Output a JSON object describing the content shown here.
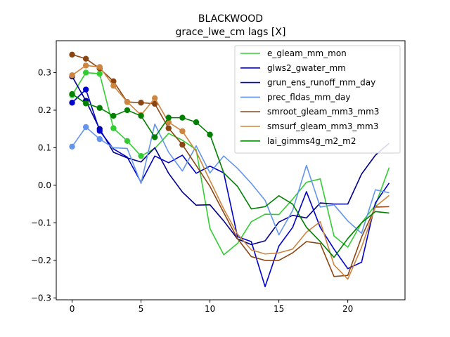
{
  "chart_data": {
    "type": "line",
    "title": "BLACKWOOD",
    "subtitle": "grace_lwe_cm lags [X]",
    "xlabel": "",
    "ylabel": "",
    "xlim": [
      -1.15,
      24.15
    ],
    "ylim": [
      -0.305,
      0.385
    ],
    "xticks": [
      0,
      5,
      10,
      15,
      20
    ],
    "yticks": [
      -0.3,
      -0.2,
      -0.1,
      0.0,
      0.1,
      0.2,
      0.3
    ],
    "ytick_labels": [
      "−0.3",
      "−0.2",
      "−0.1",
      "0.0",
      "0.1",
      "0.2",
      "0.3"
    ],
    "grid": false,
    "legend_position": "top-right",
    "x": [
      0,
      1,
      2,
      3,
      4,
      5,
      6,
      7,
      8,
      9,
      10,
      11,
      12,
      13,
      14,
      15,
      16,
      17,
      18,
      19,
      20,
      21,
      22,
      23
    ],
    "series": [
      {
        "name": "e_gleam_mm_mon",
        "color": "#32cd32",
        "values": [
          0.24,
          0.3,
          0.297,
          0.152,
          0.118,
          0.078,
          0.098,
          0.138,
          0.12,
          0.095,
          -0.115,
          -0.185,
          -0.155,
          -0.097,
          -0.077,
          -0.078,
          -0.037,
          0.008,
          0.017,
          -0.135,
          -0.165,
          -0.1,
          -0.053,
          0.047
        ],
        "markers_upto": 5
      },
      {
        "name": "glws2_gwater_mm",
        "color": "#00008b",
        "values": [
          0.29,
          0.225,
          0.15,
          0.088,
          0.073,
          0.062,
          0.1,
          0.032,
          -0.018,
          -0.053,
          -0.052,
          -0.095,
          -0.143,
          -0.158,
          -0.148,
          -0.098,
          -0.08,
          -0.087,
          -0.047,
          -0.05,
          -0.05,
          0.03,
          0.08,
          0.112
        ],
        "markers_upto": 2
      },
      {
        "name": "grun_ens_runoff_mm_day",
        "color": "#0000cd",
        "values": [
          0.22,
          0.255,
          0.145,
          0.097,
          0.075,
          0.008,
          0.078,
          0.06,
          0.08,
          0.032,
          0.051,
          0.033,
          -0.137,
          -0.15,
          -0.27,
          -0.162,
          -0.112,
          -0.017,
          -0.112,
          -0.17,
          -0.222,
          -0.205,
          -0.047,
          0.006
        ],
        "markers_upto": 2
      },
      {
        "name": "prec_fldas_mm_day",
        "color": "#6495ed",
        "values": [
          0.103,
          0.155,
          0.123,
          0.1,
          0.098,
          0.005,
          0.163,
          0.088,
          0.038,
          0.105,
          0.033,
          0.078,
          0.045,
          0.005,
          -0.04,
          -0.132,
          -0.067,
          0.053,
          -0.058,
          -0.052,
          -0.095,
          -0.128,
          -0.012,
          -0.02
        ],
        "markers_upto": 2
      },
      {
        "name": "smroot_gleam_mm3_mm3",
        "color": "#8b4513",
        "values": [
          0.348,
          0.337,
          0.311,
          0.277,
          0.222,
          0.22,
          0.217,
          0.152,
          0.108,
          0.053,
          -0.003,
          -0.073,
          -0.142,
          -0.19,
          -0.2,
          -0.2,
          -0.18,
          -0.15,
          -0.155,
          -0.243,
          -0.24,
          -0.138,
          -0.058,
          -0.057
        ],
        "markers_upto": 8
      },
      {
        "name": "smsurf_gleam_mm3_mm3",
        "color": "#cd853f",
        "values": [
          0.293,
          0.319,
          0.315,
          0.265,
          0.222,
          0.187,
          0.232,
          0.168,
          0.144,
          0.09,
          0.013,
          -0.063,
          -0.13,
          -0.172,
          -0.183,
          -0.18,
          -0.17,
          -0.125,
          -0.097,
          -0.212,
          -0.25,
          -0.165,
          -0.057,
          -0.027
        ],
        "markers_upto": 8
      },
      {
        "name": "lai_gimms4g_m2_m2",
        "color": "#008000",
        "values": [
          0.243,
          0.218,
          0.206,
          0.185,
          0.2,
          0.185,
          0.128,
          0.18,
          0.18,
          0.168,
          0.135,
          0.033,
          -0.003,
          -0.063,
          -0.057,
          -0.028,
          -0.05,
          -0.112,
          -0.15,
          -0.192,
          -0.142,
          -0.1,
          -0.07,
          -0.074
        ],
        "markers_upto": 10
      }
    ]
  }
}
